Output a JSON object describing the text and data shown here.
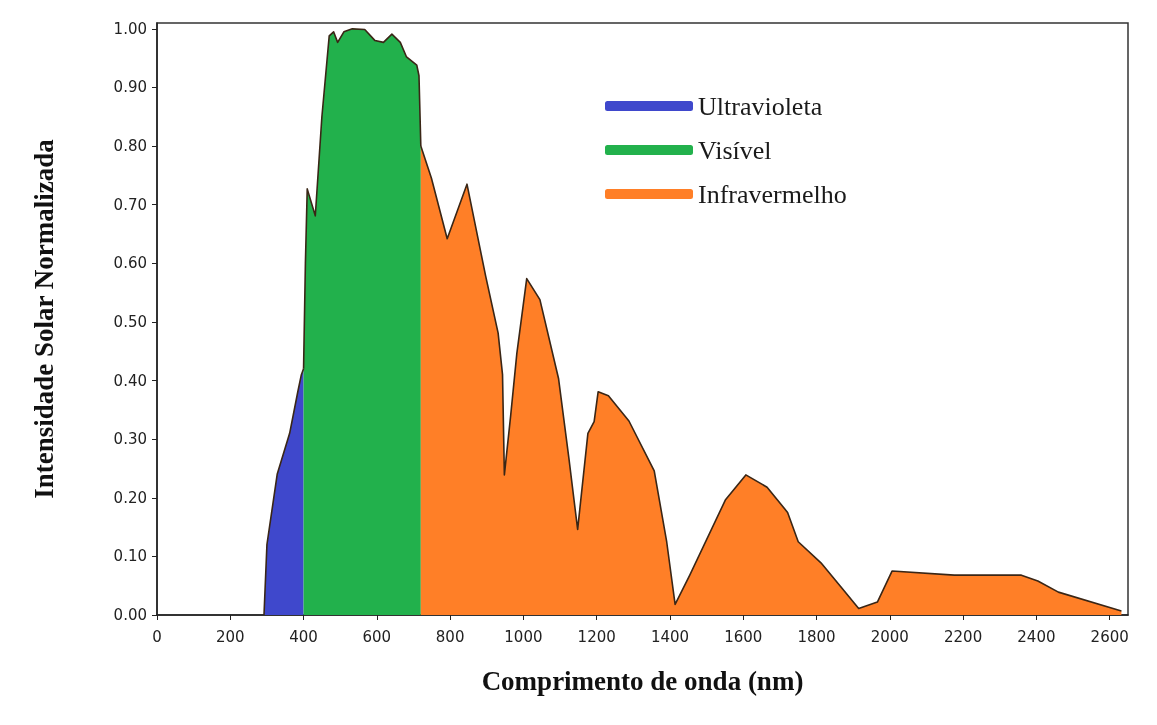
{
  "chart_data": {
    "type": "area",
    "xlabel": "Comprimento de onda (nm)",
    "ylabel": "Intensidade Solar Normalizada",
    "xlim": [
      0,
      2650
    ],
    "xticks": [
      0,
      200,
      400,
      600,
      800,
      1000,
      1200,
      1400,
      1600,
      1800,
      2000,
      2200,
      2400,
      2600
    ],
    "ylim": [
      0,
      1.01
    ],
    "yticks": [
      {
        "value": 0,
        "label": "0.00"
      },
      {
        "value": 0.1,
        "label": "0.10"
      },
      {
        "value": 0.2,
        "label": "0.20"
      },
      {
        "value": 0.3,
        "label": "0.30"
      },
      {
        "value": 0.4,
        "label": "0.40"
      },
      {
        "value": 0.5,
        "label": "0.50"
      },
      {
        "value": 0.6,
        "label": "0.60"
      },
      {
        "value": 0.7,
        "label": "0.70"
      },
      {
        "value": 0.8,
        "label": "0.80"
      },
      {
        "value": 0.9,
        "label": "0.90"
      },
      {
        "value": 1,
        "label": "1.00"
      }
    ],
    "grid": false,
    "legend": "top",
    "marker": "none",
    "series": [
      {
        "name": "Ultravioleta",
        "color": "#3f48cc",
        "x": [
          292,
          300,
          328,
          362,
          384,
          394,
          400
        ],
        "values": [
          0,
          0.12,
          0.24,
          0.31,
          0.38,
          0.41,
          0.42
        ]
      },
      {
        "name": "Visível",
        "color": "#22b14c",
        "x": [
          400,
          405,
          410,
          432,
          450,
          470,
          482,
          493,
          510,
          533,
          567,
          595,
          618,
          641,
          664,
          681,
          709,
          715,
          720
        ],
        "values": [
          0.42,
          0.6,
          0.727,
          0.681,
          0.85,
          0.988,
          0.995,
          0.977,
          0.995,
          1.0,
          0.999,
          0.98,
          0.977,
          0.991,
          0.977,
          0.952,
          0.938,
          0.92,
          0.8
        ]
      },
      {
        "name": "Infravermelho",
        "color": "#ff7f27",
        "x": [
          720,
          749,
          792,
          846,
          897,
          931,
          943,
          948,
          965,
          982,
          1009,
          1045,
          1096,
          1124,
          1148,
          1176,
          1193,
          1204,
          1232,
          1288,
          1357,
          1391,
          1414,
          1454,
          1551,
          1607,
          1665,
          1721,
          1750,
          1812,
          1869,
          1915,
          1966,
          2006,
          2176,
          2359,
          2404,
          2460,
          2632
        ],
        "values": [
          0.8,
          0.745,
          0.642,
          0.735,
          0.578,
          0.481,
          0.41,
          0.239,
          0.339,
          0.446,
          0.574,
          0.538,
          0.403,
          0.268,
          0.146,
          0.31,
          0.33,
          0.381,
          0.374,
          0.331,
          0.246,
          0.125,
          0.018,
          0.068,
          0.196,
          0.239,
          0.218,
          0.175,
          0.125,
          0.089,
          0.046,
          0.011,
          0.022,
          0.075,
          0.068,
          0.068,
          0.058,
          0.039,
          0.007
        ]
      }
    ]
  }
}
